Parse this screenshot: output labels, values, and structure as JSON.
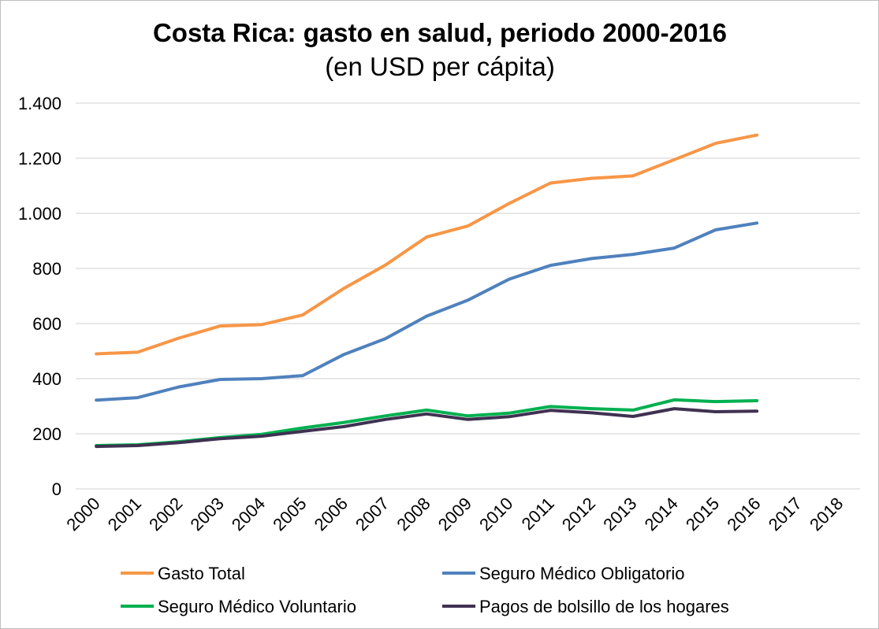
{
  "chart_data": {
    "type": "line",
    "title": "Costa Rica: gasto en salud, periodo 2000-2016",
    "subtitle": "(en USD per cápita)",
    "xlabel": "",
    "ylabel": "",
    "categories": [
      "2000",
      "2001",
      "2002",
      "2003",
      "2004",
      "2005",
      "2006",
      "2007",
      "2008",
      "2009",
      "2010",
      "2011",
      "2012",
      "2013",
      "2014",
      "2015",
      "2016",
      "2017",
      "2018"
    ],
    "ylim": [
      0,
      1400
    ],
    "yticks": [
      0,
      200,
      400,
      600,
      800,
      1000,
      1200,
      1400
    ],
    "ytick_labels": [
      "0",
      "200",
      "400",
      "600",
      "800",
      "1.000",
      "1.200",
      "1.400"
    ],
    "grid": true,
    "legend_position": "bottom",
    "series": [
      {
        "name": "Gasto Total",
        "color": "#F79646",
        "values": [
          490,
          496,
          547,
          591,
          596,
          631,
          728,
          812,
          914,
          954,
          1036,
          1110,
          1127,
          1136,
          1195,
          1254,
          1284,
          null,
          null
        ]
      },
      {
        "name": "Seguro Médico Obligatorio",
        "color": "#4F81BD",
        "values": [
          322,
          331,
          370,
          397,
          400,
          411,
          488,
          545,
          627,
          685,
          761,
          811,
          836,
          851,
          874,
          940,
          965,
          null,
          null
        ]
      },
      {
        "name": "Seguro Médico Voluntario",
        "color": "#00B050",
        "values": [
          157,
          160,
          171,
          186,
          198,
          221,
          241,
          265,
          286,
          265,
          275,
          299,
          291,
          286,
          323,
          317,
          320,
          null,
          null
        ]
      },
      {
        "name": "Pagos de bolsillo de los hogares",
        "color": "#403151",
        "values": [
          154,
          157,
          168,
          182,
          191,
          209,
          226,
          252,
          272,
          252,
          262,
          285,
          276,
          263,
          291,
          280,
          282,
          null,
          null
        ]
      }
    ]
  }
}
